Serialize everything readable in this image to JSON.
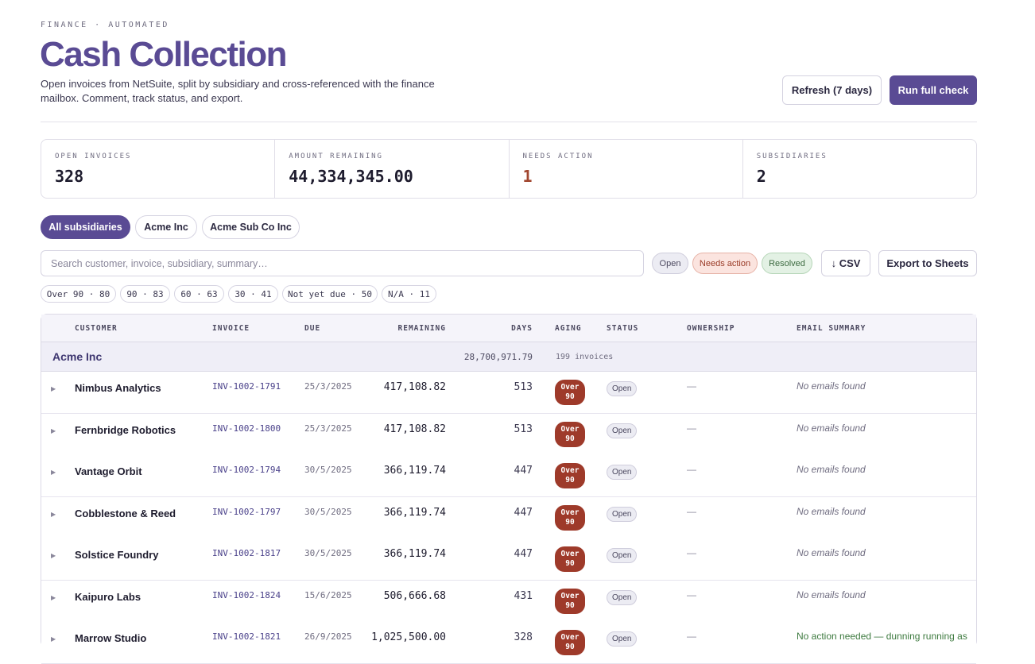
{
  "header": {
    "eyebrow": "FINANCE · AUTOMATED",
    "title": "Cash Collection",
    "subtitle": "Open invoices from NetSuite, split by subsidiary and cross-referenced with the finance mailbox. Comment, track status, and export.",
    "refresh_label": "Refresh (7 days)",
    "run_label": "Run full check"
  },
  "stats": [
    {
      "label": "OPEN INVOICES",
      "value": "328"
    },
    {
      "label": "AMOUNT REMAINING",
      "value": "44,334,345.00"
    },
    {
      "label": "NEEDS ACTION",
      "value": "1"
    },
    {
      "label": "SUBSIDIARIES",
      "value": "2"
    }
  ],
  "subsidiary_tabs": [
    "All subsidiaries",
    "Acme Inc",
    "Acme Sub Co Inc"
  ],
  "search": {
    "placeholder": "Search customer, invoice, subsidiary, summary…",
    "value": ""
  },
  "status_filters": [
    "Open",
    "Needs action",
    "Resolved"
  ],
  "csv_label": "↓ CSV",
  "sheets_label": "Export to Sheets",
  "aging_filters": [
    "Over 90 · 80",
    "90 · 83",
    "60 · 63",
    "30 · 41",
    "Not yet due · 50",
    "N/A · 11"
  ],
  "table": {
    "columns": [
      "CUSTOMER",
      "INVOICE",
      "DUE",
      "REMAINING",
      "DAYS",
      "AGING",
      "STATUS",
      "OWNERSHIP",
      "EMAIL SUMMARY"
    ],
    "group": {
      "name": "Acme Inc",
      "total": "28,700,971.79",
      "count": "199 invoices"
    },
    "rows": [
      {
        "customer": "Nimbus Analytics",
        "invoice": "INV-1002-1791",
        "due": "25/3/2025",
        "remaining": "417,108.82",
        "days": "513",
        "aging_line1": "Over",
        "aging_line2": "90",
        "status": "Open",
        "ownership": "—",
        "email": "No emails found"
      },
      {
        "customer": "Fernbridge Robotics",
        "invoice": "INV-1002-1800",
        "due": "25/3/2025",
        "remaining": "417,108.82",
        "days": "513",
        "aging_line1": "Over",
        "aging_line2": "90",
        "status": "Open",
        "ownership": "—",
        "email": "No emails found"
      },
      {
        "customer": "Vantage Orbit",
        "invoice": "INV-1002-1794",
        "due": "30/5/2025",
        "remaining": "366,119.74",
        "days": "447",
        "aging_line1": "Over",
        "aging_line2": "90",
        "status": "Open",
        "ownership": "—",
        "email": "No emails found"
      },
      {
        "customer": "Cobblestone & Reed",
        "invoice": "INV-1002-1797",
        "due": "30/5/2025",
        "remaining": "366,119.74",
        "days": "447",
        "aging_line1": "Over",
        "aging_line2": "90",
        "status": "Open",
        "ownership": "—",
        "email": "No emails found"
      },
      {
        "customer": "Solstice Foundry",
        "invoice": "INV-1002-1817",
        "due": "30/5/2025",
        "remaining": "366,119.74",
        "days": "447",
        "aging_line1": "Over",
        "aging_line2": "90",
        "status": "Open",
        "ownership": "—",
        "email": "No emails found"
      },
      {
        "customer": "Kaipuro Labs",
        "invoice": "INV-1002-1824",
        "due": "15/6/2025",
        "remaining": "506,666.68",
        "days": "431",
        "aging_line1": "Over",
        "aging_line2": "90",
        "status": "Open",
        "ownership": "—",
        "email": "No emails found"
      },
      {
        "customer": "Marrow Studio",
        "invoice": "INV-1002-1821",
        "due": "26/9/2025",
        "remaining": "1,025,500.00",
        "days": "328",
        "aging_line1": "Over",
        "aging_line2": "90",
        "status": "Open",
        "ownership": "—",
        "email": "No action needed — dunning running as"
      }
    ]
  },
  "colors": {
    "accent": "#5a4b94",
    "warn": "#a1462f",
    "aging_badge": "#9e3a2a"
  }
}
